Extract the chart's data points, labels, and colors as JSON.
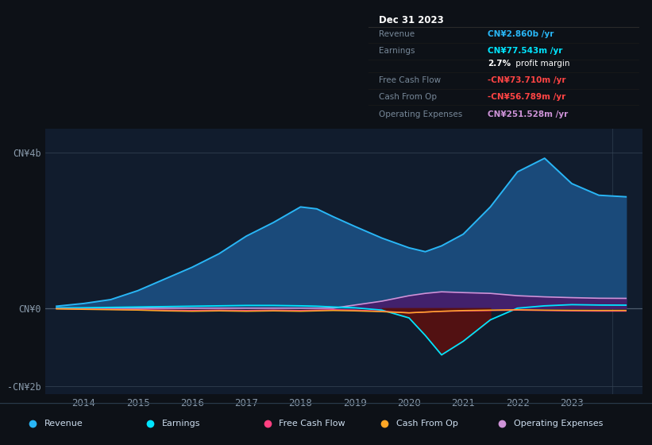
{
  "bg_color": "#0d1117",
  "plot_bg_color": "#111c2d",
  "ylim": [
    -2200000000.0,
    4600000000.0
  ],
  "xlim": [
    2013.3,
    2024.3
  ],
  "x_years": [
    2013.5,
    2014.0,
    2014.5,
    2015.0,
    2015.5,
    2016.0,
    2016.5,
    2017.0,
    2017.5,
    2018.0,
    2018.3,
    2018.6,
    2019.0,
    2019.5,
    2020.0,
    2020.3,
    2020.6,
    2021.0,
    2021.5,
    2022.0,
    2022.5,
    2023.0,
    2023.5,
    2024.0
  ],
  "revenue": [
    50000000.0,
    120000000.0,
    220000000.0,
    450000000.0,
    750000000.0,
    1050000000.0,
    1400000000.0,
    1850000000.0,
    2200000000.0,
    2600000000.0,
    2550000000.0,
    2350000000.0,
    2100000000.0,
    1800000000.0,
    1550000000.0,
    1450000000.0,
    1600000000.0,
    1900000000.0,
    2600000000.0,
    3500000000.0,
    3850000000.0,
    3200000000.0,
    2900000000.0,
    2860000000.0
  ],
  "earnings": [
    10000000.0,
    10000000.0,
    20000000.0,
    30000000.0,
    40000000.0,
    50000000.0,
    60000000.0,
    70000000.0,
    70000000.0,
    60000000.0,
    50000000.0,
    30000000.0,
    10000000.0,
    -50000000.0,
    -250000000.0,
    -700000000.0,
    -1200000000.0,
    -850000000.0,
    -300000000.0,
    0.0,
    60000000.0,
    90000000.0,
    80000000.0,
    77500000.0
  ],
  "free_cash_flow": [
    -10000000.0,
    -20000000.0,
    -30000000.0,
    -40000000.0,
    -50000000.0,
    -60000000.0,
    -50000000.0,
    -60000000.0,
    -50000000.0,
    -60000000.0,
    -50000000.0,
    -40000000.0,
    -50000000.0,
    -80000000.0,
    -120000000.0,
    -100000000.0,
    -80000000.0,
    -70000000.0,
    -60000000.0,
    -50000000.0,
    -60000000.0,
    -70000000.0,
    -74000000.0,
    -73700000.0
  ],
  "cash_from_op": [
    -20000000.0,
    -30000000.0,
    -40000000.0,
    -50000000.0,
    -70000000.0,
    -80000000.0,
    -70000000.0,
    -80000000.0,
    -70000000.0,
    -80000000.0,
    -70000000.0,
    -60000000.0,
    -70000000.0,
    -90000000.0,
    -120000000.0,
    -100000000.0,
    -80000000.0,
    -60000000.0,
    -50000000.0,
    -40000000.0,
    -50000000.0,
    -55000000.0,
    -57000000.0,
    -56800000.0
  ],
  "op_expenses": [
    0.0,
    0.0,
    0.0,
    0.0,
    0.0,
    0.0,
    0.0,
    0.0,
    0.0,
    0.0,
    0.0,
    0.0,
    80000000.0,
    180000000.0,
    320000000.0,
    380000000.0,
    420000000.0,
    400000000.0,
    380000000.0,
    320000000.0,
    290000000.0,
    270000000.0,
    255000000.0,
    251500000.0
  ],
  "revenue_line_color": "#29b6f6",
  "revenue_fill_color": "#1a4a7a",
  "earnings_line_color": "#00e5ff",
  "earnings_fill_neg_color": "#5a1010",
  "fcf_line_color": "#ff4081",
  "cfo_line_color": "#ffa726",
  "opex_line_color": "#ce93d8",
  "opex_fill_color": "#4a1a6a",
  "y_ticks": [
    4000000000.0,
    0,
    -2000000000.0
  ],
  "y_tick_labels": [
    "CN¥4b",
    "CN¥0",
    "-CN¥2b"
  ],
  "x_tick_years": [
    2014,
    2015,
    2016,
    2017,
    2018,
    2019,
    2020,
    2021,
    2022,
    2023
  ],
  "legend_items": [
    {
      "label": "Revenue",
      "color": "#29b6f6"
    },
    {
      "label": "Earnings",
      "color": "#00e5ff"
    },
    {
      "label": "Free Cash Flow",
      "color": "#ff4081"
    },
    {
      "label": "Cash From Op",
      "color": "#ffa726"
    },
    {
      "label": "Operating Expenses",
      "color": "#ce93d8"
    }
  ],
  "tooltip_title": "Dec 31 2023",
  "tooltip_rows": [
    {
      "label": "Revenue",
      "value": "CN¥2.860b /yr",
      "value_color": "#29b6f6",
      "bold_value": true
    },
    {
      "label": "Earnings",
      "value": "CN¥77.543m /yr",
      "value_color": "#00e5ff",
      "bold_value": true
    },
    {
      "label": "",
      "value": "profit margin",
      "value_color": "#ffffff",
      "bold_prefix": "2.7%",
      "bold_value": false
    },
    {
      "label": "Free Cash Flow",
      "value": "-CN¥73.710m /yr",
      "value_color": "#ff4444",
      "bold_value": true
    },
    {
      "label": "Cash From Op",
      "value": "-CN¥56.789m /yr",
      "value_color": "#ff4444",
      "bold_value": true
    },
    {
      "label": "Operating Expenses",
      "value": "CN¥251.528m /yr",
      "value_color": "#ce93d8",
      "bold_value": true
    }
  ]
}
